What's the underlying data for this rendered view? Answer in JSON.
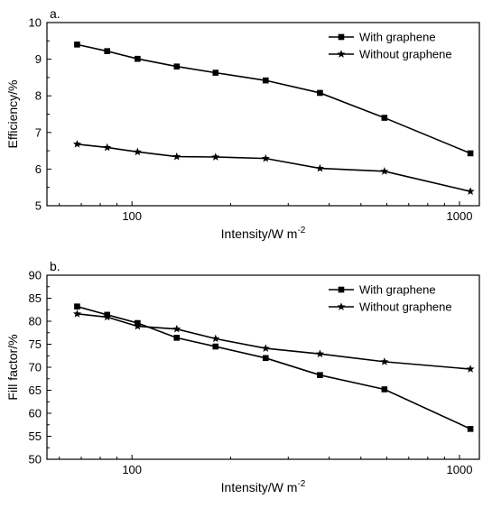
{
  "chart_data": [
    {
      "type": "line",
      "panel_label": "a.",
      "xlabel": "Intensity/W m",
      "xlabel_sup": "-2",
      "ylabel": "Efficiency/%",
      "xscale": "log",
      "xlim": [
        55,
        1150
      ],
      "ylim": [
        5,
        10
      ],
      "xticks": [
        100,
        1000
      ],
      "xtick_labels": [
        "100",
        "1000"
      ],
      "yticks": [
        5,
        6,
        7,
        8,
        9,
        10
      ],
      "ytick_labels": [
        "5",
        "6",
        "7",
        "8",
        "9",
        "10"
      ],
      "legend_position": "top-right",
      "grid": false,
      "series": [
        {
          "name": "With graphene",
          "marker": "square",
          "x": [
            68,
            84,
            104,
            137,
            180,
            256,
            375,
            590,
            1080
          ],
          "y": [
            9.4,
            9.22,
            9.01,
            8.8,
            8.63,
            8.42,
            8.08,
            7.4,
            6.43
          ]
        },
        {
          "name": "Without graphene",
          "marker": "star",
          "x": [
            68,
            84,
            104,
            137,
            180,
            256,
            375,
            590,
            1080
          ],
          "y": [
            6.68,
            6.59,
            6.47,
            6.34,
            6.33,
            6.29,
            6.02,
            5.94,
            5.39
          ]
        }
      ]
    },
    {
      "type": "line",
      "panel_label": "b.",
      "xlabel": "Intensity/W m",
      "xlabel_sup": "-2",
      "ylabel": "Fill factor/%",
      "xscale": "log",
      "xlim": [
        55,
        1150
      ],
      "ylim": [
        50,
        90
      ],
      "xticks": [
        100,
        1000
      ],
      "xtick_labels": [
        "100",
        "1000"
      ],
      "yticks": [
        50,
        55,
        60,
        65,
        70,
        75,
        80,
        85,
        90
      ],
      "ytick_labels": [
        "50",
        "55",
        "60",
        "65",
        "70",
        "75",
        "80",
        "85",
        "90"
      ],
      "legend_position": "top-right",
      "grid": false,
      "series": [
        {
          "name": "With graphene",
          "marker": "square",
          "x": [
            68,
            84,
            104,
            137,
            180,
            256,
            375,
            590,
            1080
          ],
          "y": [
            83.2,
            81.4,
            79.6,
            76.4,
            74.5,
            72.0,
            68.3,
            65.2,
            56.6
          ]
        },
        {
          "name": "Without graphene",
          "marker": "star",
          "x": [
            68,
            84,
            104,
            137,
            180,
            256,
            375,
            590,
            1080
          ],
          "y": [
            81.6,
            80.9,
            78.9,
            78.3,
            76.2,
            74.1,
            72.9,
            71.2,
            69.6
          ]
        }
      ]
    }
  ]
}
